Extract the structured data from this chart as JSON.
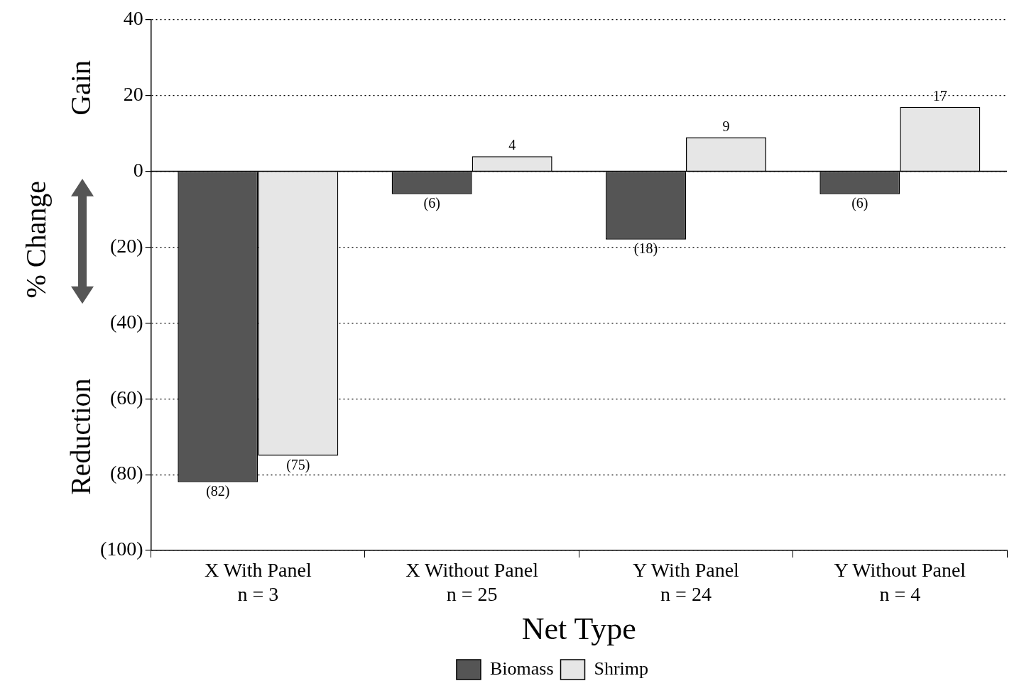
{
  "chart_data": {
    "type": "bar",
    "categories": [
      "X With Panel\nn = 3",
      "X Without Panel\nn = 25",
      "Y With Panel\nn = 24",
      "Y Without Panel\nn = 4"
    ],
    "series": [
      {
        "name": "Biomass",
        "color": "#555555",
        "values": [
          -82,
          -6,
          -18,
          -6
        ],
        "value_labels": [
          "(82)",
          "(6)",
          "(18)",
          "(6)"
        ]
      },
      {
        "name": "Shrimp",
        "color": "#e6e6e6",
        "values": [
          -75,
          4,
          9,
          17
        ],
        "value_labels": [
          "(75)",
          "4",
          "9",
          "17"
        ]
      }
    ],
    "xlabel": "Net Type",
    "ylabel": "% Change",
    "annotations": [
      "Gain",
      "Reduction"
    ],
    "ylim": [
      -100,
      40
    ],
    "yticks": [
      {
        "value": -100,
        "label": "(100)"
      },
      {
        "value": -80,
        "label": "(80)"
      },
      {
        "value": -60,
        "label": "(60)"
      },
      {
        "value": -40,
        "label": "(40)"
      },
      {
        "value": -20,
        "label": "(20)"
      },
      0,
      20,
      40
    ],
    "ref_lines": [
      {
        "axis": "y",
        "value": 0,
        "line_style": "solid",
        "color": "#000000"
      }
    ],
    "grid": "y",
    "legend": "bottom"
  }
}
